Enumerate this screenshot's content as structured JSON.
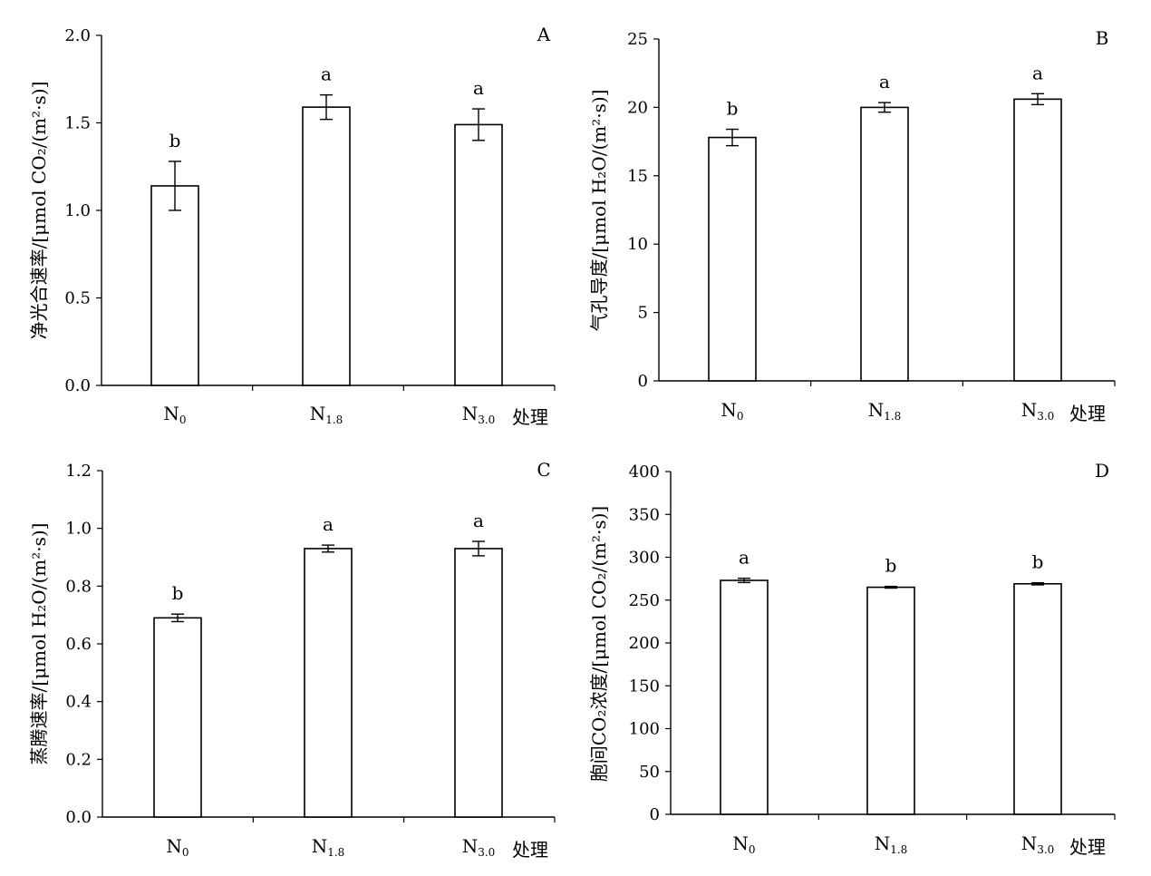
{
  "chart_data": [
    {
      "type": "bar",
      "panel": "A",
      "ylabel": "净光合速率/[μmol CO₂/(m²·s)]",
      "ylim": [
        0,
        2.0
      ],
      "ytick_labels": [
        "0.0",
        "0.5",
        "1.0",
        "1.5",
        "2.0"
      ],
      "xlabel": "处理",
      "categories": [
        {
          "main": "N",
          "sub": "0"
        },
        {
          "main": "N",
          "sub": "1.8"
        },
        {
          "main": "N",
          "sub": "3.0"
        }
      ],
      "values": [
        1.14,
        1.59,
        1.49
      ],
      "errors": [
        0.14,
        0.07,
        0.09
      ],
      "significance": [
        "b",
        "a",
        "a"
      ]
    },
    {
      "type": "bar",
      "panel": "B",
      "ylabel": "气孔导度/[μmol H₂O/(m²·s)]",
      "ylim": [
        0,
        25
      ],
      "ytick_labels": [
        "0",
        "5",
        "10",
        "15",
        "20",
        "25"
      ],
      "xlabel": "处理",
      "categories": [
        {
          "main": "N",
          "sub": "0"
        },
        {
          "main": "N",
          "sub": "1.8"
        },
        {
          "main": "N",
          "sub": "3.0"
        }
      ],
      "values": [
        17.8,
        20.0,
        20.6
      ],
      "errors": [
        0.6,
        0.35,
        0.4
      ],
      "significance": [
        "b",
        "a",
        "a"
      ]
    },
    {
      "type": "bar",
      "panel": "C",
      "ylabel": "蒸腾速率/[μmol H₂O/(m²·s)]",
      "ylim": [
        0,
        1.2
      ],
      "ytick_labels": [
        "0.0",
        "0.2",
        "0.4",
        "0.6",
        "0.8",
        "1.0",
        "1.2"
      ],
      "xlabel": "处理",
      "categories": [
        {
          "main": "N",
          "sub": "0"
        },
        {
          "main": "N",
          "sub": "1.8"
        },
        {
          "main": "N",
          "sub": "3.0"
        }
      ],
      "values": [
        0.69,
        0.93,
        0.93
      ],
      "errors": [
        0.013,
        0.012,
        0.025
      ],
      "significance": [
        "b",
        "a",
        "a"
      ]
    },
    {
      "type": "bar",
      "panel": "D",
      "ylabel": "胞间CO₂浓度/[μmol CO₂/(m²·s)]",
      "ylim": [
        0,
        400
      ],
      "ytick_labels": [
        "0",
        "50",
        "100",
        "150",
        "200",
        "250",
        "300",
        "350",
        "400"
      ],
      "xlabel": "处理",
      "categories": [
        {
          "main": "N",
          "sub": "0"
        },
        {
          "main": "N",
          "sub": "1.8"
        },
        {
          "main": "N",
          "sub": "3.0"
        }
      ],
      "values": [
        273,
        265,
        269
      ],
      "errors": [
        2.5,
        1,
        1.2
      ],
      "significance": [
        "a",
        "b",
        "b"
      ]
    }
  ]
}
